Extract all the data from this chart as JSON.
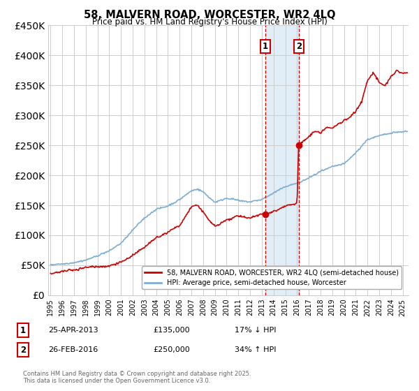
{
  "title": "58, MALVERN ROAD, WORCESTER, WR2 4LQ",
  "subtitle": "Price paid vs. HM Land Registry's House Price Index (HPI)",
  "ylim": [
    0,
    450000
  ],
  "yticks": [
    0,
    50000,
    100000,
    150000,
    200000,
    250000,
    300000,
    350000,
    400000,
    450000
  ],
  "xlim_start": 1994.8,
  "xlim_end": 2025.5,
  "legend_line1": "58, MALVERN ROAD, WORCESTER, WR2 4LQ (semi-detached house)",
  "legend_line2": "HPI: Average price, semi-detached house, Worcester",
  "purchase1_date": "25-APR-2013",
  "purchase1_price": 135000,
  "purchase1_pct": "17% ↓ HPI",
  "purchase1_year": 2013.3,
  "purchase2_date": "26-FEB-2016",
  "purchase2_price": 250000,
  "purchase2_pct": "34% ↑ HPI",
  "purchase2_year": 2016.15,
  "footnote": "Contains HM Land Registry data © Crown copyright and database right 2025.\nThis data is licensed under the Open Government Licence v3.0.",
  "line_color_red": "#cc0000",
  "line_color_blue": "#7aadd4",
  "shade_color": "#daeaf5",
  "grid_color": "#cccccc",
  "bg_color": "#ffffff",
  "hpi_points": [
    [
      1995.0,
      50000
    ],
    [
      1996.0,
      52000
    ],
    [
      1997.0,
      55000
    ],
    [
      1998.0,
      60000
    ],
    [
      1999.0,
      67000
    ],
    [
      2000.0,
      75000
    ],
    [
      2001.0,
      88000
    ],
    [
      2002.0,
      110000
    ],
    [
      2003.0,
      130000
    ],
    [
      2004.0,
      145000
    ],
    [
      2005.0,
      150000
    ],
    [
      2006.0,
      160000
    ],
    [
      2007.0,
      175000
    ],
    [
      2007.5,
      178000
    ],
    [
      2008.0,
      172000
    ],
    [
      2008.5,
      163000
    ],
    [
      2009.0,
      155000
    ],
    [
      2009.5,
      158000
    ],
    [
      2010.0,
      162000
    ],
    [
      2010.5,
      160000
    ],
    [
      2011.0,
      158000
    ],
    [
      2011.5,
      157000
    ],
    [
      2012.0,
      156000
    ],
    [
      2012.5,
      158000
    ],
    [
      2013.0,
      160000
    ],
    [
      2013.3,
      163000
    ],
    [
      2014.0,
      170000
    ],
    [
      2015.0,
      180000
    ],
    [
      2016.15,
      187000
    ],
    [
      2017.0,
      195000
    ],
    [
      2018.0,
      205000
    ],
    [
      2019.0,
      213000
    ],
    [
      2020.0,
      218000
    ],
    [
      2021.0,
      235000
    ],
    [
      2022.0,
      258000
    ],
    [
      2023.0,
      265000
    ],
    [
      2024.0,
      270000
    ],
    [
      2025.0,
      272000
    ]
  ],
  "red_points": [
    [
      1995.0,
      42000
    ],
    [
      1996.0,
      44000
    ],
    [
      1997.0,
      46000
    ],
    [
      1998.0,
      49000
    ],
    [
      1999.0,
      51000
    ],
    [
      2000.0,
      52000
    ],
    [
      2001.0,
      58000
    ],
    [
      2002.0,
      68000
    ],
    [
      2003.0,
      80000
    ],
    [
      2004.0,
      95000
    ],
    [
      2005.0,
      105000
    ],
    [
      2006.0,
      115000
    ],
    [
      2007.0,
      148000
    ],
    [
      2007.5,
      150000
    ],
    [
      2008.0,
      140000
    ],
    [
      2008.5,
      125000
    ],
    [
      2009.0,
      115000
    ],
    [
      2009.5,
      118000
    ],
    [
      2010.0,
      125000
    ],
    [
      2010.5,
      128000
    ],
    [
      2011.0,
      132000
    ],
    [
      2011.5,
      130000
    ],
    [
      2012.0,
      128000
    ],
    [
      2012.5,
      132000
    ],
    [
      2013.0,
      135000
    ],
    [
      2013.3,
      135000
    ],
    [
      2014.0,
      138000
    ],
    [
      2015.0,
      148000
    ],
    [
      2016.0,
      152000
    ],
    [
      2016.15,
      250000
    ],
    [
      2017.0,
      265000
    ],
    [
      2017.5,
      275000
    ],
    [
      2018.0,
      272000
    ],
    [
      2018.5,
      280000
    ],
    [
      2019.0,
      278000
    ],
    [
      2019.5,
      285000
    ],
    [
      2020.0,
      290000
    ],
    [
      2020.5,
      295000
    ],
    [
      2021.0,
      305000
    ],
    [
      2021.5,
      320000
    ],
    [
      2022.0,
      355000
    ],
    [
      2022.5,
      368000
    ],
    [
      2023.0,
      350000
    ],
    [
      2023.5,
      345000
    ],
    [
      2024.0,
      360000
    ],
    [
      2024.5,
      370000
    ],
    [
      2025.0,
      365000
    ]
  ]
}
